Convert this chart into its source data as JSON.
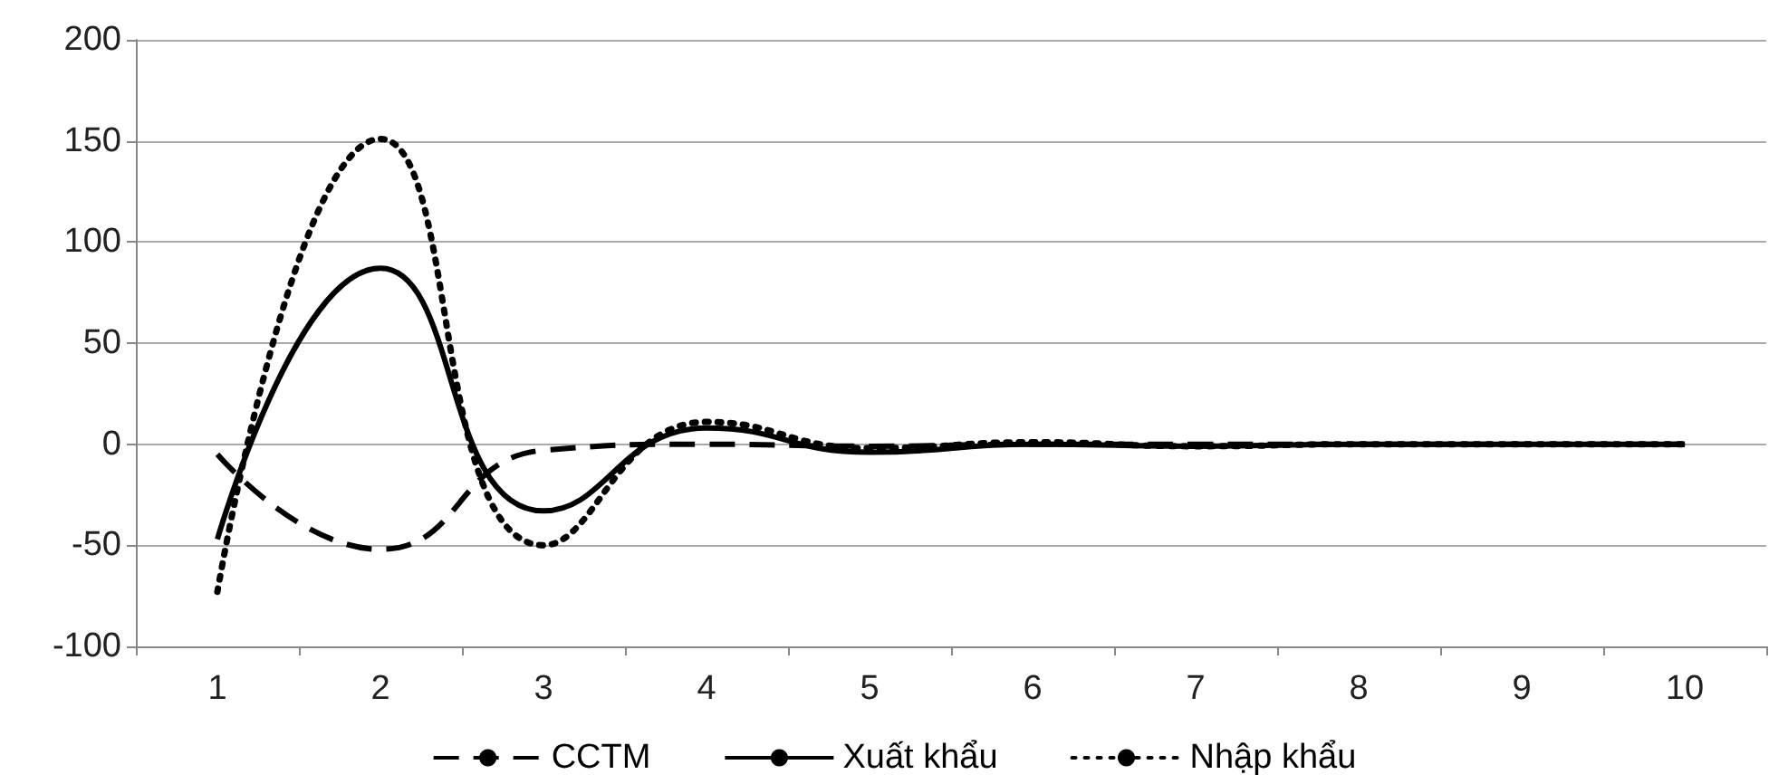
{
  "chart_data": {
    "type": "line",
    "categories": [
      "1",
      "2",
      "3",
      "4",
      "5",
      "6",
      "7",
      "8",
      "9",
      "10"
    ],
    "series": [
      {
        "name": "CCTM",
        "color": "#000000",
        "line_style": "dashed",
        "values": [
          -5,
          -52,
          -3,
          0,
          -1,
          0,
          0,
          0,
          0,
          0
        ]
      },
      {
        "name": "Xuất khẩu",
        "color": "#000000",
        "line_style": "solid",
        "values": [
          -47,
          87,
          -33,
          8,
          -4,
          0,
          -1,
          0,
          0,
          0
        ]
      },
      {
        "name": "Nhập khẩu",
        "color": "#000000",
        "line_style": "dotted",
        "values": [
          -73,
          151,
          -50,
          11,
          -2,
          1,
          -1,
          0,
          0,
          0
        ]
      }
    ],
    "ylim": [
      -100,
      200
    ],
    "yticks": [
      -100,
      -50,
      0,
      50,
      100,
      150,
      200
    ],
    "grid": "y",
    "legend": "bottom",
    "marker": "none"
  }
}
